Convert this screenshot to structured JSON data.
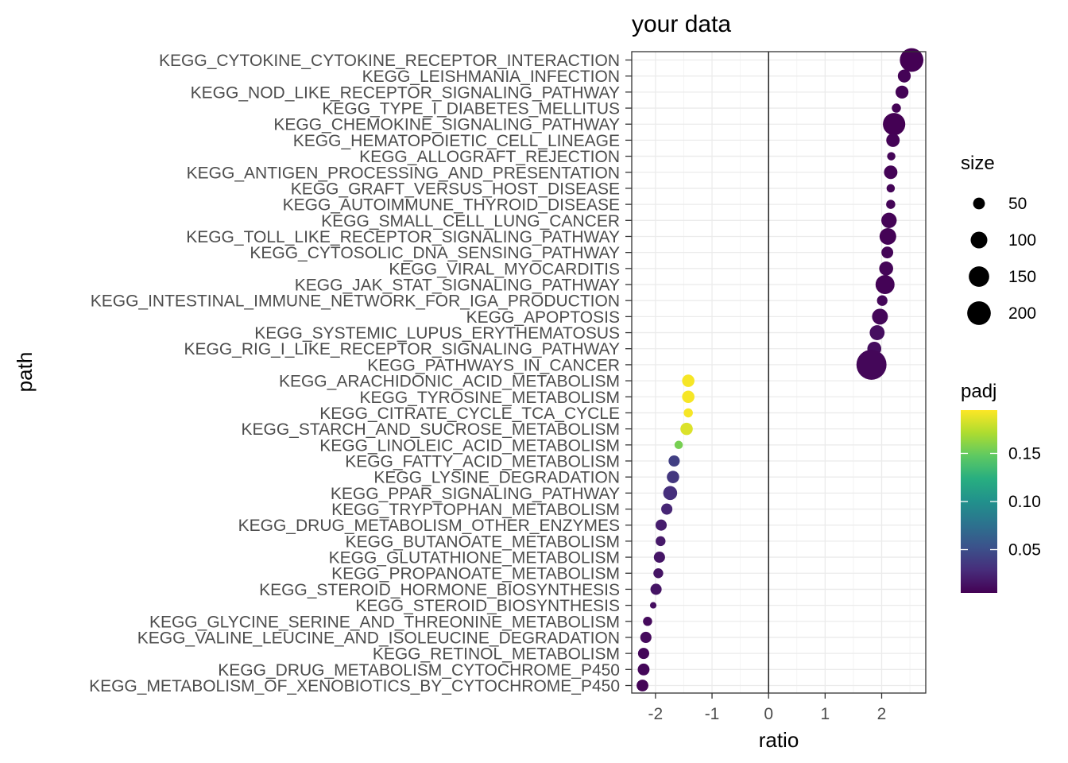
{
  "chart_data": {
    "type": "scatter",
    "title": "your data",
    "xlabel": "ratio",
    "ylabel": "path",
    "xlim": [
      -2.42,
      2.78
    ],
    "x_ticks": [
      -2,
      -1,
      0,
      1,
      2
    ],
    "grid": true,
    "reference_line_x": 0,
    "legend_position": "right",
    "size_legend": {
      "title": "size",
      "values": [
        50,
        100,
        150,
        200
      ]
    },
    "color_legend": {
      "title": "padj",
      "range": [
        0.005,
        0.195
      ],
      "ticks": [
        0.05,
        0.1,
        0.15
      ],
      "tick_labels": [
        "0.05",
        "0.10",
        "0.15"
      ],
      "colormap": "viridis"
    },
    "points": [
      {
        "path": "KEGG_CYTOKINE_CYTOKINE_RECEPTOR_INTERACTION",
        "ratio": 2.53,
        "size": 200,
        "padj": 0.005
      },
      {
        "path": "KEGG_LEISHMANIA_INFECTION",
        "ratio": 2.4,
        "size": 60,
        "padj": 0.006
      },
      {
        "path": "KEGG_NOD_LIKE_RECEPTOR_SIGNALING_PATHWAY",
        "ratio": 2.36,
        "size": 60,
        "padj": 0.006
      },
      {
        "path": "KEGG_TYPE_I_DIABETES_MELLITUS",
        "ratio": 2.26,
        "size": 30,
        "padj": 0.006
      },
      {
        "path": "KEGG_CHEMOKINE_SIGNALING_PATHWAY",
        "ratio": 2.22,
        "size": 180,
        "padj": 0.005
      },
      {
        "path": "KEGG_HEMATOPOIETIC_CELL_LINEAGE",
        "ratio": 2.2,
        "size": 65,
        "padj": 0.006
      },
      {
        "path": "KEGG_ALLOGRAFT_REJECTION",
        "ratio": 2.17,
        "size": 25,
        "padj": 0.007
      },
      {
        "path": "KEGG_ANTIGEN_PROCESSING_AND_PRESENTATION",
        "ratio": 2.16,
        "size": 65,
        "padj": 0.006
      },
      {
        "path": "KEGG_GRAFT_VERSUS_HOST_DISEASE",
        "ratio": 2.16,
        "size": 25,
        "padj": 0.007
      },
      {
        "path": "KEGG_AUTOIMMUNE_THYROID_DISEASE",
        "ratio": 2.16,
        "size": 30,
        "padj": 0.007
      },
      {
        "path": "KEGG_SMALL_CELL_LUNG_CANCER",
        "ratio": 2.13,
        "size": 85,
        "padj": 0.006
      },
      {
        "path": "KEGG_TOLL_LIKE_RECEPTOR_SIGNALING_PATHWAY",
        "ratio": 2.11,
        "size": 100,
        "padj": 0.006
      },
      {
        "path": "KEGG_CYTOSOLIC_DNA_SENSING_PATHWAY",
        "ratio": 2.1,
        "size": 50,
        "padj": 0.007
      },
      {
        "path": "KEGG_VIRAL_MYOCARDITIS",
        "ratio": 2.08,
        "size": 70,
        "padj": 0.007
      },
      {
        "path": "KEGG_JAK_STAT_SIGNALING_PATHWAY",
        "ratio": 2.06,
        "size": 130,
        "padj": 0.006
      },
      {
        "path": "KEGG_INTESTINAL_IMMUNE_NETWORK_FOR_IGA_PRODUCTION",
        "ratio": 2.01,
        "size": 40,
        "padj": 0.008
      },
      {
        "path": "KEGG_APOPTOSIS",
        "ratio": 1.97,
        "size": 90,
        "padj": 0.008
      },
      {
        "path": "KEGG_SYSTEMIC_LUPUS_ERYTHEMATOSUS",
        "ratio": 1.92,
        "size": 80,
        "padj": 0.012
      },
      {
        "path": "KEGG_RIG_I_LIKE_RECEPTOR_SIGNALING_PATHWAY",
        "ratio": 1.87,
        "size": 70,
        "padj": 0.012
      },
      {
        "path": "KEGG_PATHWAYS_IN_CANCER",
        "ratio": 1.82,
        "size": 325,
        "padj": 0.008
      },
      {
        "path": "KEGG_ARACHIDONIC_ACID_METABOLISM",
        "ratio": -1.42,
        "size": 55,
        "padj": 0.193
      },
      {
        "path": "KEGG_TYROSINE_METABOLISM",
        "ratio": -1.42,
        "size": 55,
        "padj": 0.193
      },
      {
        "path": "KEGG_CITRATE_CYCLE_TCA_CYCLE",
        "ratio": -1.42,
        "size": 30,
        "padj": 0.193
      },
      {
        "path": "KEGG_STARCH_AND_SUCROSE_METABOLISM",
        "ratio": -1.45,
        "size": 55,
        "padj": 0.185
      },
      {
        "path": "KEGG_LINOLEIC_ACID_METABOLISM",
        "ratio": -1.59,
        "size": 25,
        "padj": 0.155
      },
      {
        "path": "KEGG_FATTY_ACID_METABOLISM",
        "ratio": -1.67,
        "size": 45,
        "padj": 0.04
      },
      {
        "path": "KEGG_LYSINE_DEGRADATION",
        "ratio": -1.69,
        "size": 55,
        "padj": 0.035
      },
      {
        "path": "KEGG_PPAR_SIGNALING_PATHWAY",
        "ratio": -1.74,
        "size": 70,
        "padj": 0.03
      },
      {
        "path": "KEGG_TRYPTOPHAN_METABOLISM",
        "ratio": -1.8,
        "size": 45,
        "padj": 0.025
      },
      {
        "path": "KEGG_DRUG_METABOLISM_OTHER_ENZYMES",
        "ratio": -1.9,
        "size": 45,
        "padj": 0.02
      },
      {
        "path": "KEGG_BUTANOATE_METABOLISM",
        "ratio": -1.91,
        "size": 35,
        "padj": 0.018
      },
      {
        "path": "KEGG_GLUTATHIONE_METABOLISM",
        "ratio": -1.93,
        "size": 45,
        "padj": 0.016
      },
      {
        "path": "KEGG_PROPANOATE_METABOLISM",
        "ratio": -1.95,
        "size": 35,
        "padj": 0.015
      },
      {
        "path": "KEGG_STEROID_HORMONE_BIOSYNTHESIS",
        "ratio": -1.99,
        "size": 45,
        "padj": 0.015
      },
      {
        "path": "KEGG_STEROID_BIOSYNTHESIS",
        "ratio": -2.04,
        "size": 15,
        "padj": 0.012
      },
      {
        "path": "KEGG_GLYCINE_SERINE_AND_THREONINE_METABOLISM",
        "ratio": -2.14,
        "size": 30,
        "padj": 0.01
      },
      {
        "path": "KEGG_VALINE_LEUCINE_AND_ISOLEUCINE_DEGRADATION",
        "ratio": -2.17,
        "size": 45,
        "padj": 0.01
      },
      {
        "path": "KEGG_RETINOL_METABOLISM",
        "ratio": -2.21,
        "size": 45,
        "padj": 0.008
      },
      {
        "path": "KEGG_DRUG_METABOLISM_CYTOCHROME_P450",
        "ratio": -2.21,
        "size": 50,
        "padj": 0.008
      },
      {
        "path": "KEGG_METABOLISM_OF_XENOBIOTICS_BY_CYTOCHROME_P450",
        "ratio": -2.23,
        "size": 50,
        "padj": 0.007
      }
    ]
  }
}
